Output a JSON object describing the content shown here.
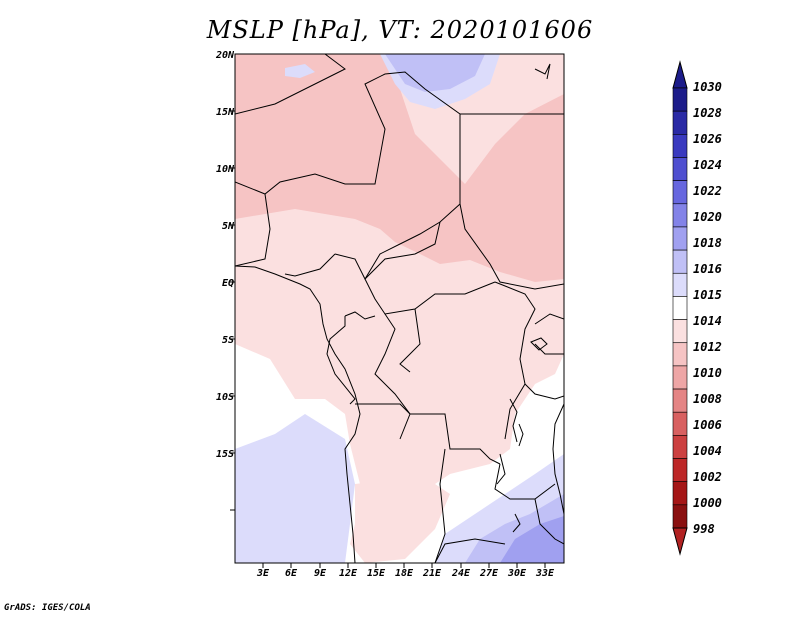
{
  "title": "MSLP [hPa], VT: 2020101606",
  "credit": "GrADS: IGES/COLA",
  "axes": {
    "lat_labels": [
      "20N",
      "15N",
      "10N",
      "5N",
      "EQ",
      "5S",
      "10S",
      "15S"
    ],
    "lon_labels": [
      "3E",
      "6E",
      "9E",
      "12E",
      "15E",
      "18E",
      "21E",
      "24E",
      "27E",
      "30E",
      "33E"
    ]
  },
  "colorbar": {
    "labels": [
      "1030",
      "1028",
      "1026",
      "1024",
      "1022",
      "1020",
      "1018",
      "1016",
      "1015",
      "1014",
      "1012",
      "1010",
      "1008",
      "1006",
      "1004",
      "1002",
      "1000",
      "998"
    ],
    "colors": [
      "#1c1c8a",
      "#2a2aa5",
      "#3a3abf",
      "#4f4fd0",
      "#6767df",
      "#8383e8",
      "#a0a0f0",
      "#c0c0f6",
      "#dcdcfb",
      "#ffffff",
      "#fbe0e0",
      "#f6c4c4",
      "#eea6a6",
      "#e48484",
      "#d86060",
      "#cc4040",
      "#bd2727",
      "#a51616",
      "#8a1010"
    ],
    "arrow_top_color": "#1c1c8a",
    "arrow_bottom_color": "#b22222"
  },
  "colors": {
    "ocean_blue": "#dcdcfb",
    "mid_blue": "#c0c0f6",
    "deep_blue": "#a0a0f0",
    "pale_pink": "#fbe0e0",
    "mid_pink": "#f6c4c4",
    "white": "#ffffff"
  }
}
